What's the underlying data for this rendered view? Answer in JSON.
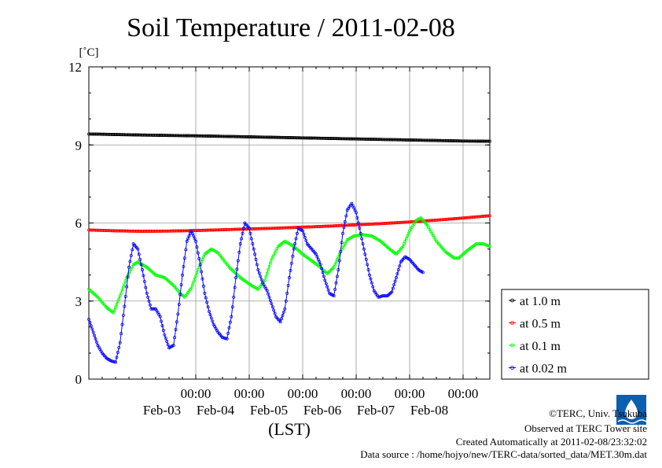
{
  "chart_data": {
    "type": "line",
    "title": "Soil Temperature / 2011-02-08",
    "y_unit": "[˚C]",
    "xlabel": "(LST)",
    "ylim": [
      0,
      12
    ],
    "y_ticks": [
      "0",
      "3",
      "6",
      "9",
      "12"
    ],
    "x_range_hours": [
      -48,
      132
    ],
    "x_ticks": [
      {
        "time": "00:00",
        "date": "Feb-03",
        "hour": 0
      },
      {
        "time": "00:00",
        "date": "Feb-04",
        "hour": 24
      },
      {
        "time": "00:00",
        "date": "Feb-05",
        "hour": 48
      },
      {
        "time": "00:00",
        "date": "Feb-06",
        "hour": 72
      },
      {
        "time": "00:00",
        "date": "Feb-07",
        "hour": 96
      },
      {
        "time": "00:00",
        "date": "Feb-08",
        "hour": 120
      }
    ],
    "grid": true,
    "legend_position": "right",
    "series": [
      {
        "name": "at 1.0 m",
        "color": "#000000",
        "points": [
          [
            -48,
            9.42
          ],
          [
            -24,
            9.38
          ],
          [
            0,
            9.35
          ],
          [
            24,
            9.31
          ],
          [
            48,
            9.27
          ],
          [
            72,
            9.23
          ],
          [
            96,
            9.19
          ],
          [
            120,
            9.15
          ],
          [
            132,
            9.14
          ]
        ]
      },
      {
        "name": "at 0.5 m",
        "color": "#ff0000",
        "points": [
          [
            -48,
            5.73
          ],
          [
            -36,
            5.7
          ],
          [
            -24,
            5.68
          ],
          [
            -12,
            5.69
          ],
          [
            0,
            5.71
          ],
          [
            12,
            5.74
          ],
          [
            24,
            5.77
          ],
          [
            36,
            5.8
          ],
          [
            48,
            5.84
          ],
          [
            60,
            5.88
          ],
          [
            72,
            5.93
          ],
          [
            84,
            5.98
          ],
          [
            96,
            6.04
          ],
          [
            108,
            6.11
          ],
          [
            120,
            6.19
          ],
          [
            132,
            6.28
          ]
        ]
      },
      {
        "name": "at 0.1 m",
        "color": "#00ff00",
        "points": [
          [
            -48,
            3.45
          ],
          [
            -44,
            3.15
          ],
          [
            -40,
            2.75
          ],
          [
            -37,
            2.55
          ],
          [
            -34,
            3.2
          ],
          [
            -31,
            3.9
          ],
          [
            -28,
            4.4
          ],
          [
            -26,
            4.5
          ],
          [
            -22,
            4.3
          ],
          [
            -18,
            4.0
          ],
          [
            -14,
            3.9
          ],
          [
            -10,
            3.6
          ],
          [
            -7,
            3.3
          ],
          [
            -5,
            3.15
          ],
          [
            -2,
            3.5
          ],
          [
            1,
            4.2
          ],
          [
            4,
            4.8
          ],
          [
            7,
            5.0
          ],
          [
            10,
            4.85
          ],
          [
            15,
            4.3
          ],
          [
            20,
            3.9
          ],
          [
            25,
            3.6
          ],
          [
            28,
            3.45
          ],
          [
            31,
            3.8
          ],
          [
            34,
            4.6
          ],
          [
            37,
            5.1
          ],
          [
            40,
            5.3
          ],
          [
            44,
            5.1
          ],
          [
            48,
            4.8
          ],
          [
            52,
            4.55
          ],
          [
            56,
            4.3
          ],
          [
            59,
            4.05
          ],
          [
            62,
            4.3
          ],
          [
            65,
            4.9
          ],
          [
            68,
            5.35
          ],
          [
            71,
            5.5
          ],
          [
            75,
            5.55
          ],
          [
            79,
            5.5
          ],
          [
            83,
            5.3
          ],
          [
            87,
            5.0
          ],
          [
            90,
            4.8
          ],
          [
            93,
            5.1
          ],
          [
            96,
            5.7
          ],
          [
            99,
            6.1
          ],
          [
            101,
            6.2
          ],
          [
            104,
            5.9
          ],
          [
            108,
            5.3
          ],
          [
            112,
            4.9
          ],
          [
            116,
            4.65
          ],
          [
            118,
            4.65
          ],
          [
            122,
            4.95
          ],
          [
            126,
            5.2
          ],
          [
            129,
            5.2
          ],
          [
            132,
            5.1
          ]
        ]
      },
      {
        "name": "at 0.02 m",
        "color": "#0000ff",
        "points": [
          [
            -48,
            2.3
          ],
          [
            -46,
            1.8
          ],
          [
            -44,
            1.3
          ],
          [
            -42,
            1.0
          ],
          [
            -40,
            0.8
          ],
          [
            -38,
            0.7
          ],
          [
            -36,
            0.65
          ],
          [
            -34,
            1.4
          ],
          [
            -32,
            2.8
          ],
          [
            -30,
            4.3
          ],
          [
            -28,
            5.2
          ],
          [
            -26,
            5.0
          ],
          [
            -24,
            4.2
          ],
          [
            -22,
            3.3
          ],
          [
            -20,
            2.7
          ],
          [
            -18,
            2.7
          ],
          [
            -16,
            2.4
          ],
          [
            -14,
            1.7
          ],
          [
            -12,
            1.2
          ],
          [
            -10,
            1.3
          ],
          [
            -8,
            2.5
          ],
          [
            -6,
            4.0
          ],
          [
            -4,
            5.3
          ],
          [
            -2,
            5.7
          ],
          [
            0,
            5.3
          ],
          [
            2,
            4.4
          ],
          [
            4,
            3.3
          ],
          [
            6,
            2.6
          ],
          [
            8,
            2.1
          ],
          [
            10,
            1.8
          ],
          [
            12,
            1.6
          ],
          [
            14,
            1.55
          ],
          [
            16,
            2.4
          ],
          [
            18,
            3.9
          ],
          [
            20,
            5.2
          ],
          [
            22,
            6.0
          ],
          [
            24,
            5.8
          ],
          [
            26,
            5.0
          ],
          [
            28,
            4.2
          ],
          [
            30,
            3.7
          ],
          [
            32,
            3.4
          ],
          [
            34,
            2.9
          ],
          [
            36,
            2.4
          ],
          [
            38,
            2.2
          ],
          [
            40,
            2.7
          ],
          [
            42,
            3.9
          ],
          [
            44,
            5.0
          ],
          [
            46,
            5.8
          ],
          [
            48,
            5.7
          ],
          [
            50,
            5.2
          ],
          [
            52,
            5.0
          ],
          [
            54,
            4.8
          ],
          [
            56,
            4.4
          ],
          [
            58,
            3.8
          ],
          [
            60,
            3.3
          ],
          [
            62,
            3.2
          ],
          [
            64,
            4.2
          ],
          [
            66,
            5.6
          ],
          [
            68,
            6.5
          ],
          [
            70,
            6.75
          ],
          [
            72,
            6.4
          ],
          [
            74,
            5.6
          ],
          [
            76,
            4.8
          ],
          [
            78,
            4.0
          ],
          [
            80,
            3.4
          ],
          [
            82,
            3.15
          ],
          [
            84,
            3.2
          ],
          [
            86,
            3.2
          ],
          [
            88,
            3.35
          ],
          [
            90,
            3.9
          ],
          [
            92,
            4.5
          ],
          [
            94,
            4.7
          ],
          [
            96,
            4.6
          ],
          [
            98,
            4.4
          ],
          [
            100,
            4.2
          ],
          [
            102,
            4.1
          ]
        ]
      }
    ]
  },
  "credits": {
    "copyright": "©TERC, Univ. Tsukuba",
    "observed": "Observed at TERC Tower site",
    "created": "Created Automatically at 2011-02-08/23:32:02",
    "source": "Data source : /home/hojyo/new/TERC-data/sorted_data/MET.30m.dat"
  },
  "logo": {
    "text": "TERC",
    "color": "#0a5fb0"
  }
}
